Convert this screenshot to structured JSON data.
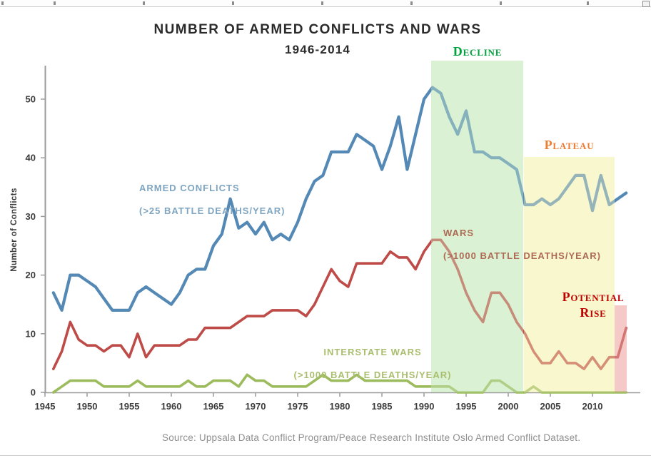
{
  "source": "Source: Uppsala Data Conflict Program/Peace Research Institute Oslo Armed Conflict Dataset.",
  "series_labels": {
    "armed": {
      "line1": "ARMED CONFLICTS",
      "line2": "(>25 BATTLE DEATHS/YEAR)",
      "color": "#7FA5C1"
    },
    "wars": {
      "line1": "WARS",
      "line2": "(>1000 BATTLE DEATHS/YEAR)",
      "color": "#AE6A55"
    },
    "interstate": {
      "line1": "INTERSTATE WARS",
      "line2": "(>1000 BATTLE DEATHS/YEAR)",
      "color": "#A9BE6E"
    }
  },
  "regions": {
    "decline": {
      "label": "Decline",
      "text_color": "#00A13C",
      "band_color": "#CFEEC6"
    },
    "plateau": {
      "label": "Plateau",
      "text_color": "#ED7D31",
      "band_color": "#F7F5BD"
    },
    "potential_rise": {
      "label_line1": "Potential",
      "label_line2": "Rise",
      "text_color": "#C00000",
      "band_color": "#F2B8B6"
    }
  },
  "chart_data": {
    "type": "line",
    "title": "NUMBER OF ARMED CONFLICTS AND WARS",
    "subtitle": "1946-2014",
    "xlabel": "",
    "ylabel": "Number of Conflicts",
    "x_start": 1946,
    "x_end": 2014,
    "x_tick_years": [
      1945,
      1950,
      1955,
      1960,
      1965,
      1970,
      1975,
      1980,
      1985,
      1990,
      1995,
      2000,
      2005,
      2010
    ],
    "y_ticks": [
      0,
      10,
      20,
      30,
      40,
      50
    ],
    "ylim": [
      0,
      56
    ],
    "grid": false,
    "legend_position": "on-chart-labels",
    "annotations": [
      {
        "label": "Decline",
        "years": "1991-2002"
      },
      {
        "label": "Plateau",
        "years": "2002-2012"
      },
      {
        "label": "Potential Rise",
        "years": "2013-2014"
      }
    ],
    "series": [
      {
        "id": "armed-conflicts",
        "name": "Armed conflicts (>25 battle deaths/year)",
        "color": "#5489B6",
        "values": [
          17,
          14,
          20,
          20,
          19,
          18,
          16,
          14,
          14,
          14,
          17,
          18,
          17,
          16,
          15,
          17,
          20,
          21,
          21,
          25,
          27,
          33,
          28,
          29,
          27,
          29,
          26,
          27,
          26,
          29,
          33,
          36,
          37,
          41,
          41,
          41,
          44,
          43,
          42,
          38,
          42,
          47,
          38,
          44,
          50,
          52,
          51,
          47,
          44,
          48,
          41,
          41,
          40,
          40,
          39,
          38,
          32,
          32,
          33,
          32,
          33,
          35,
          37,
          37,
          31,
          37,
          32,
          33,
          34
        ]
      },
      {
        "id": "wars",
        "name": "Wars (>1000 battle deaths/year)",
        "color": "#BE4B48",
        "values": [
          4,
          7,
          12,
          9,
          8,
          8,
          7,
          8,
          8,
          6,
          10,
          6,
          8,
          8,
          8,
          8,
          9,
          9,
          11,
          11,
          11,
          11,
          12,
          13,
          13,
          13,
          14,
          14,
          14,
          14,
          13,
          15,
          18,
          21,
          19,
          18,
          22,
          22,
          22,
          22,
          24,
          23,
          23,
          21,
          24,
          26,
          26,
          24,
          21,
          17,
          14,
          12,
          17,
          17,
          15,
          12,
          10,
          7,
          5,
          5,
          7,
          5,
          5,
          4,
          6,
          4,
          6,
          6,
          11
        ]
      },
      {
        "id": "interstate-wars",
        "name": "Interstate wars (>1000 battle deaths/year)",
        "color": "#9CBB5C",
        "values": [
          0,
          1,
          2,
          2,
          2,
          2,
          1,
          1,
          1,
          1,
          2,
          1,
          1,
          1,
          1,
          1,
          2,
          1,
          1,
          2,
          2,
          2,
          1,
          3,
          2,
          2,
          1,
          1,
          1,
          1,
          1,
          2,
          3,
          2,
          2,
          2,
          3,
          2,
          2,
          2,
          2,
          2,
          2,
          1,
          1,
          1,
          1,
          1,
          0,
          0,
          0,
          0,
          2,
          2,
          1,
          0,
          0,
          1,
          0,
          0,
          0,
          0,
          0,
          0,
          0,
          0,
          0,
          0,
          0
        ]
      }
    ]
  }
}
